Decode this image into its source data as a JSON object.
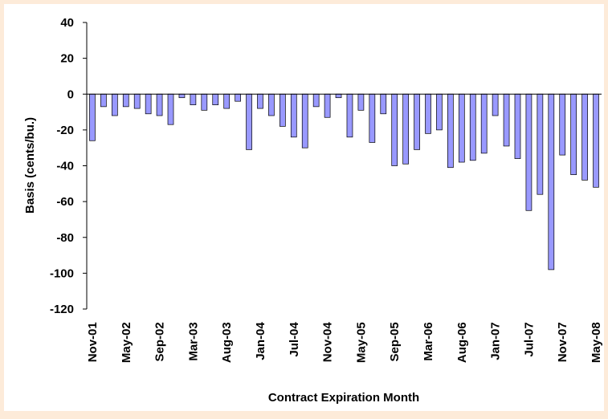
{
  "chart_data": {
    "type": "bar",
    "x_label": "Contract Expiration Month",
    "y_label": "Basis (cents/bu.)",
    "categories": [
      "Nov-01",
      null,
      null,
      "May-02",
      null,
      null,
      "Sep-02",
      null,
      null,
      "Mar-03",
      null,
      null,
      "Aug-03",
      null,
      null,
      "Jan-04",
      null,
      null,
      "Jul-04",
      null,
      null,
      "Nov-04",
      null,
      null,
      "May-05",
      null,
      null,
      "Sep-05",
      null,
      null,
      "Mar-06",
      null,
      null,
      "Aug-06",
      null,
      null,
      "Jan-07",
      null,
      null,
      "Jul-07",
      null,
      null,
      "Nov-07",
      null,
      null,
      "May-08"
    ],
    "values": [
      -26,
      -7,
      -12,
      -7,
      -8,
      -11,
      -12,
      -17,
      -2,
      -6,
      -9,
      -6,
      -8,
      -4,
      -31,
      -8,
      -12,
      -18,
      -24,
      -30,
      -7,
      -13,
      -2,
      -24,
      -9,
      -27,
      -11,
      -40,
      -39,
      -31,
      -22,
      -20,
      -41,
      -38,
      -37,
      -33,
      -12,
      -29,
      -36,
      -65,
      -56,
      -98,
      -34,
      -45,
      -48,
      -52
    ],
    "color": "#9999ff",
    "ylim": [
      -120,
      40
    ],
    "yticks": [
      -120,
      -100,
      -80,
      -60,
      -40,
      -20,
      0,
      20,
      40
    ]
  }
}
